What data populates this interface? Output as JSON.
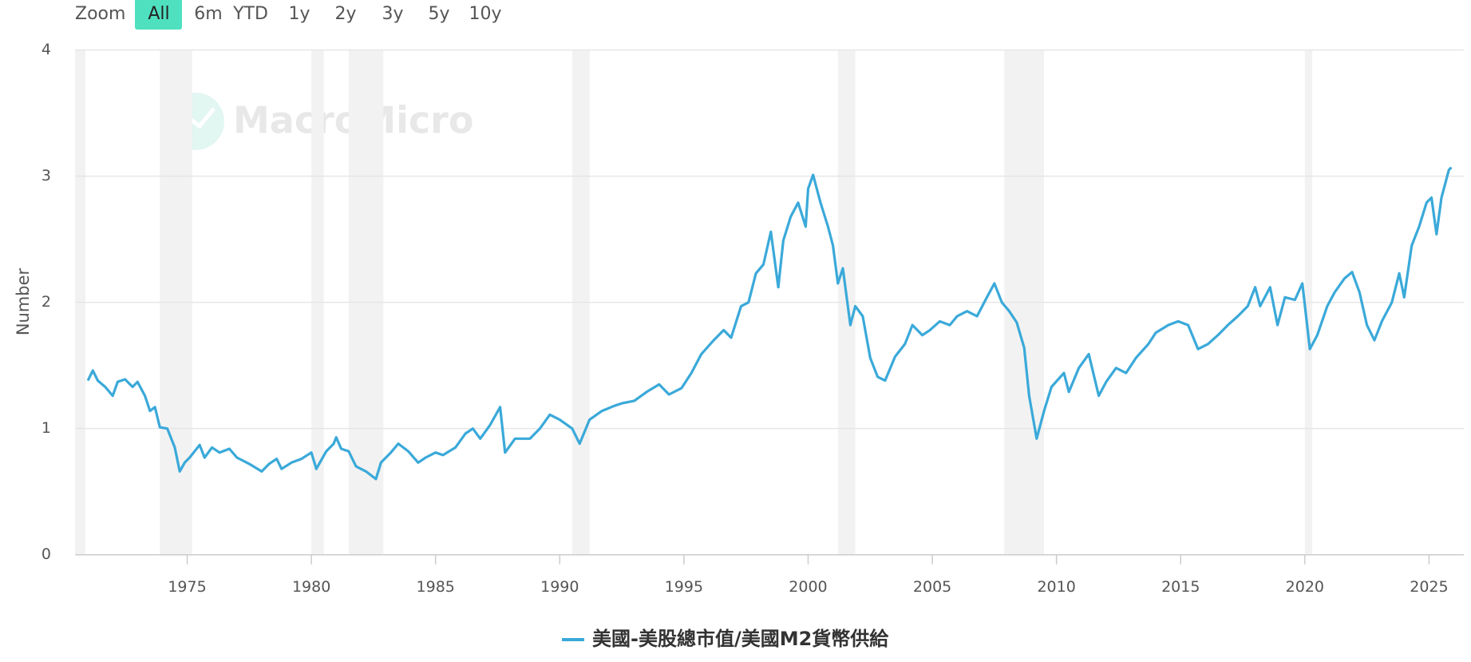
{
  "zoom": {
    "label": "Zoom",
    "options": [
      "All",
      "6m",
      "YTD",
      "1y",
      "2y",
      "3y",
      "5y",
      "10y"
    ],
    "selected": 0
  },
  "chart_data": {
    "type": "line",
    "watermark": "MacroMicro",
    "ylabel": "Number",
    "xlim": [
      1970.5,
      2026.4
    ],
    "xticks": [
      1975,
      1980,
      1985,
      1990,
      1995,
      2000,
      2005,
      2010,
      2015,
      2020,
      2025
    ],
    "ylim": [
      0,
      4
    ],
    "yticks": [
      0,
      1,
      2,
      3,
      4
    ],
    "grid": true,
    "legend": "bottom",
    "recessions": [
      [
        1969.9,
        1970.9
      ],
      [
        1973.9,
        1975.2
      ],
      [
        1980.0,
        1980.5
      ],
      [
        1981.5,
        1982.9
      ],
      [
        1990.5,
        1991.2
      ],
      [
        2001.2,
        2001.9
      ],
      [
        2007.9,
        2009.5
      ],
      [
        2020.0,
        2020.3
      ]
    ],
    "x": [
      1971.0,
      1971.2,
      1971.4,
      1971.7,
      1972.0,
      1972.2,
      1972.5,
      1972.8,
      1973.0,
      1973.3,
      1973.5,
      1973.7,
      1973.9,
      1974.2,
      1974.5,
      1974.7,
      1974.9,
      1975.1,
      1975.5,
      1975.7,
      1976.0,
      1976.3,
      1976.7,
      1977.0,
      1977.5,
      1978.0,
      1978.3,
      1978.6,
      1978.8,
      1979.2,
      1979.6,
      1980.0,
      1980.2,
      1980.6,
      1980.9,
      1981.0,
      1981.2,
      1981.5,
      1981.8,
      1982.2,
      1982.6,
      1982.8,
      1983.2,
      1983.5,
      1983.9,
      1984.3,
      1984.6,
      1985.0,
      1985.3,
      1985.8,
      1986.2,
      1986.5,
      1986.8,
      1987.2,
      1987.6,
      1987.8,
      1988.2,
      1988.8,
      1989.2,
      1989.6,
      1990.0,
      1990.5,
      1990.8,
      1991.2,
      1991.7,
      1992.2,
      1992.5,
      1993.0,
      1993.5,
      1994.0,
      1994.4,
      1994.9,
      1995.3,
      1995.7,
      1996.2,
      1996.6,
      1996.9,
      1997.3,
      1997.6,
      1997.9,
      1998.2,
      1998.5,
      1998.8,
      1999.0,
      1999.3,
      1999.6,
      1999.9,
      2000.0,
      2000.2,
      2000.5,
      2000.8,
      2001.0,
      2001.2,
      2001.4,
      2001.7,
      2001.9,
      2002.2,
      2002.5,
      2002.8,
      2003.1,
      2003.5,
      2003.9,
      2004.2,
      2004.6,
      2004.9,
      2005.3,
      2005.7,
      2006.0,
      2006.4,
      2006.8,
      2007.2,
      2007.5,
      2007.8,
      2008.1,
      2008.4,
      2008.7,
      2008.9,
      2009.2,
      2009.5,
      2009.8,
      2010.3,
      2010.5,
      2010.9,
      2011.3,
      2011.7,
      2012.0,
      2012.4,
      2012.8,
      2013.2,
      2013.7,
      2014.0,
      2014.5,
      2014.9,
      2015.3,
      2015.7,
      2016.1,
      2016.5,
      2016.9,
      2017.3,
      2017.7,
      2018.0,
      2018.2,
      2018.6,
      2018.9,
      2019.2,
      2019.6,
      2019.9,
      2020.2,
      2020.5,
      2020.9,
      2021.2,
      2021.6,
      2021.9,
      2022.2,
      2022.5,
      2022.8,
      2023.1,
      2023.5,
      2023.8,
      2024.0,
      2024.3,
      2024.6,
      2024.9,
      2025.1,
      2025.3,
      2025.5,
      2025.8,
      2025.9
    ],
    "series": [
      {
        "name": "美國-美股總市值/美國M2貨幣供給",
        "color": "#3aa9d9",
        "values": [
          1.38,
          1.46,
          1.38,
          1.33,
          1.26,
          1.37,
          1.39,
          1.33,
          1.37,
          1.26,
          1.14,
          1.17,
          1.01,
          1.0,
          0.85,
          0.66,
          0.73,
          0.77,
          0.87,
          0.77,
          0.85,
          0.81,
          0.84,
          0.77,
          0.72,
          0.66,
          0.72,
          0.76,
          0.68,
          0.73,
          0.76,
          0.81,
          0.68,
          0.82,
          0.88,
          0.93,
          0.84,
          0.82,
          0.7,
          0.66,
          0.6,
          0.73,
          0.81,
          0.88,
          0.82,
          0.73,
          0.77,
          0.81,
          0.79,
          0.85,
          0.96,
          1.0,
          0.92,
          1.03,
          1.17,
          0.81,
          0.92,
          0.92,
          1.0,
          1.11,
          1.07,
          1.0,
          0.88,
          1.07,
          1.14,
          1.18,
          1.2,
          1.22,
          1.29,
          1.35,
          1.27,
          1.32,
          1.44,
          1.59,
          1.7,
          1.78,
          1.72,
          1.97,
          2.0,
          2.23,
          2.3,
          2.56,
          2.12,
          2.49,
          2.68,
          2.79,
          2.6,
          2.9,
          3.01,
          2.79,
          2.6,
          2.45,
          2.15,
          2.27,
          1.82,
          1.97,
          1.89,
          1.56,
          1.41,
          1.38,
          1.57,
          1.67,
          1.82,
          1.74,
          1.78,
          1.85,
          1.82,
          1.89,
          1.93,
          1.89,
          2.04,
          2.15,
          2.0,
          1.93,
          1.84,
          1.64,
          1.26,
          0.92,
          1.14,
          1.33,
          1.44,
          1.29,
          1.48,
          1.59,
          1.26,
          1.37,
          1.48,
          1.44,
          1.56,
          1.67,
          1.76,
          1.82,
          1.85,
          1.82,
          1.63,
          1.67,
          1.74,
          1.82,
          1.89,
          1.97,
          2.12,
          1.97,
          2.12,
          1.82,
          2.04,
          2.02,
          2.15,
          1.63,
          1.74,
          1.97,
          2.08,
          2.19,
          2.24,
          2.08,
          1.82,
          1.7,
          1.85,
          2.0,
          2.23,
          2.04,
          2.45,
          2.6,
          2.79,
          2.83,
          2.54,
          2.83,
          3.05,
          3.07
        ]
      }
    ]
  }
}
